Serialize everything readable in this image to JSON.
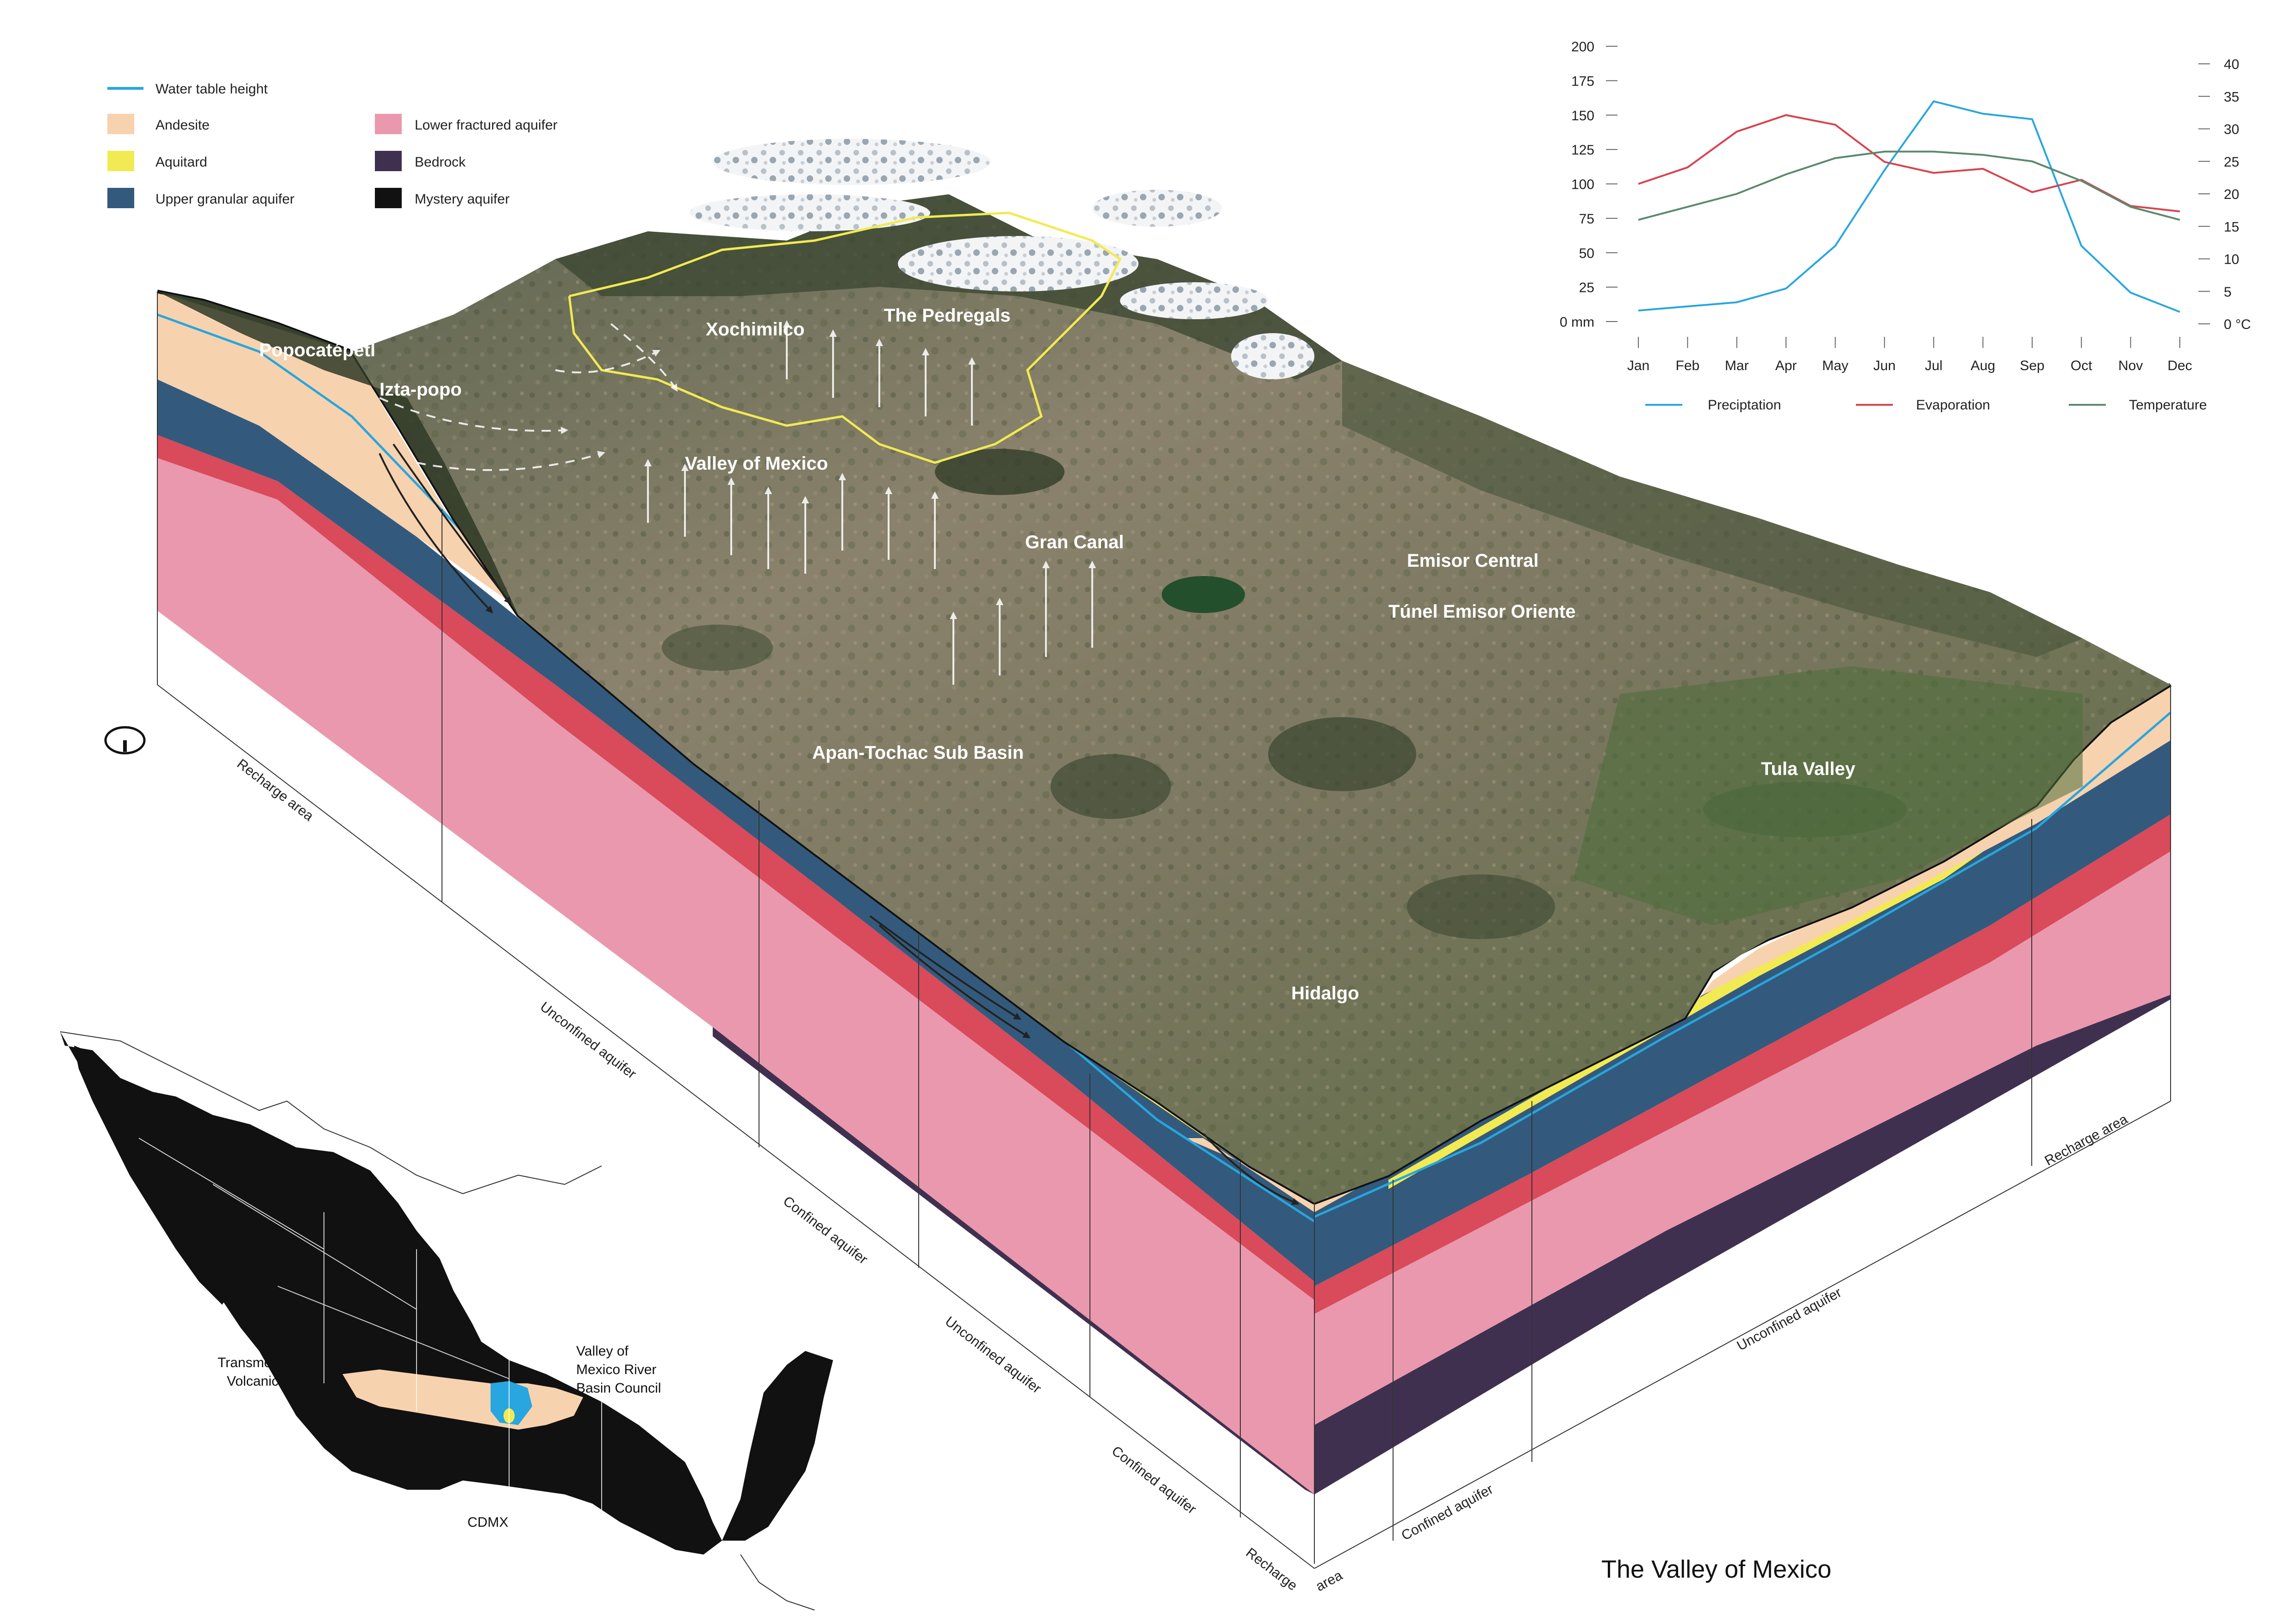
{
  "title": "The Valley of Mexico",
  "colors": {
    "andesite": "#f7d2ae",
    "aquitard": "#f2ea52",
    "upper_granular": "#335a7c",
    "lower_fractured": "#ea98ad",
    "lower_fractured_band": "#d94a5a",
    "bedrock": "#403050",
    "mystery": "#111111",
    "water_table": "#27a6df",
    "precipitation": "#27a6df",
    "evaporation": "#d8434f",
    "temperature": "#5a8a6c",
    "terrain_dark": "#3d4a30",
    "terrain_mid": "#7d7560",
    "valley_green": "#345c36"
  },
  "legend": {
    "water_table": "Water table height",
    "layers": [
      {
        "label": "Andesite",
        "key": "andesite"
      },
      {
        "label": "Aquitard",
        "key": "aquitard"
      },
      {
        "label": "Upper granular aquifer",
        "key": "upper_granular"
      },
      {
        "label": "Lower fractured aquifer",
        "key": "lower_fractured"
      },
      {
        "label": "Bedrock",
        "key": "bedrock"
      },
      {
        "label": "Mystery aquifer",
        "key": "mystery"
      }
    ]
  },
  "places": {
    "popocatepetl": "Popocatépetl",
    "izta_popo": "Izta-popo",
    "xochimilco": "Xochimilco",
    "pedregals": "The Pedregals",
    "valley": "Valley of Mexico",
    "gran_canal": "Gran Canal",
    "emisor_central": "Emisor Central",
    "tunel": "Túnel Emisor Oriente",
    "apan": "Apan-Tochac Sub Basin",
    "tula": "Tula Valley",
    "hidalgo": "Hidalgo"
  },
  "zones": {
    "left_edge": [
      "Recharge area",
      "Unconfined aquifer",
      "Confined aquifer",
      "Unconfined aquifer",
      "Confined aquifer",
      "Recharge"
    ],
    "right_edge": [
      "area",
      "Confined aquifer",
      "Unconfined aquifer",
      "Recharge area"
    ]
  },
  "chart_data": {
    "type": "line",
    "categories": [
      "Jan",
      "Feb",
      "Mar",
      "Apr",
      "May",
      "Jun",
      "Jul",
      "Aug",
      "Sep",
      "Oct",
      "Nov",
      "Dec"
    ],
    "series": [
      {
        "name": "Preciptation",
        "axis": "left",
        "values": [
          8,
          11,
          14,
          24,
          55,
          110,
          160,
          151,
          147,
          55,
          21,
          7
        ]
      },
      {
        "name": "Evaporation",
        "axis": "left",
        "values": [
          100,
          112,
          138,
          150,
          143,
          116,
          108,
          111,
          94,
          103,
          84,
          80
        ]
      },
      {
        "name": "Temperature",
        "axis": "right",
        "values": [
          16,
          18,
          20,
          23,
          25.5,
          26.5,
          26.5,
          26,
          25,
          22,
          18,
          16
        ]
      }
    ],
    "y_left": {
      "ticks": [
        "0 mm",
        "25",
        "50",
        "75",
        "100",
        "125",
        "150",
        "175",
        "200"
      ],
      "range": [
        0,
        200
      ]
    },
    "y_right": {
      "ticks": [
        "0 °C",
        "5",
        "10",
        "15",
        "20",
        "25",
        "30",
        "35",
        "40"
      ],
      "range": [
        0,
        40
      ]
    },
    "legend_position": "bottom",
    "grid": false
  },
  "map": {
    "labels": {
      "volcanic_belt": [
        "Transmexican",
        "Volcanic Belt"
      ],
      "basin_council": [
        "Valley of",
        "Mexico River",
        "Basin Council"
      ],
      "cdmx": "CDMX"
    }
  }
}
